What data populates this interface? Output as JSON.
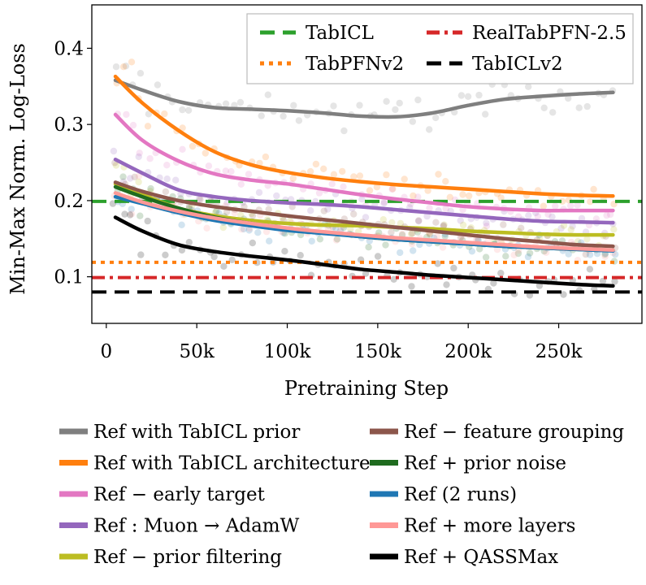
{
  "chart_data": {
    "type": "line",
    "title": "",
    "xlabel": "Pretraining Step",
    "ylabel": "Min-Max Norm. Log-Loss",
    "xlim": [
      -8000,
      296000
    ],
    "ylim": [
      0.0388,
      0.457
    ],
    "x_ticks": [
      0,
      50000,
      100000,
      150000,
      200000,
      250000
    ],
    "x_tick_labels": [
      "0",
      "50k",
      "100k",
      "150k",
      "200k",
      "250k"
    ],
    "y_ticks": [
      0.1,
      0.2,
      0.3,
      0.4
    ],
    "y_tick_labels": [
      "0.1",
      "0.2",
      "0.3",
      "0.4"
    ],
    "grid": false,
    "baselines": [
      {
        "name": "TabICL",
        "value": 0.199,
        "color": "#2ca02c",
        "style": "dashed"
      },
      {
        "name": "TabPFNv2",
        "value": 0.119,
        "color": "#ff7f0e",
        "style": "dotted"
      },
      {
        "name": "RealTabPFN-2.5",
        "value": 0.099,
        "color": "#d62728",
        "style": "dashdot"
      },
      {
        "name": "TabICLv2",
        "value": 0.08,
        "color": "#000000",
        "style": "dashed"
      }
    ],
    "x": [
      5000,
      20000,
      40000,
      60000,
      80000,
      100000,
      120000,
      140000,
      160000,
      180000,
      200000,
      220000,
      240000,
      260000,
      280000
    ],
    "series": [
      {
        "name": "Ref with TabICL prior",
        "color": "#7f7f7f",
        "values": [
          0.358,
          0.345,
          0.33,
          0.322,
          0.32,
          0.318,
          0.315,
          0.311,
          0.31,
          0.315,
          0.325,
          0.333,
          0.337,
          0.34,
          0.342
        ]
      },
      {
        "name": "Ref with TabICL architecture",
        "color": "#ff7f0e",
        "values": [
          0.363,
          0.328,
          0.292,
          0.264,
          0.247,
          0.237,
          0.23,
          0.225,
          0.221,
          0.218,
          0.215,
          0.212,
          0.209,
          0.207,
          0.206
        ]
      },
      {
        "name": "Ref − early target",
        "color": "#e377c2",
        "values": [
          0.313,
          0.279,
          0.252,
          0.235,
          0.227,
          0.222,
          0.215,
          0.208,
          0.202,
          0.197,
          0.192,
          0.189,
          0.187,
          0.187,
          0.187
        ]
      },
      {
        "name": "Ref : Muon → AdamW",
        "color": "#9467bd",
        "values": [
          0.254,
          0.236,
          0.214,
          0.205,
          0.2,
          0.197,
          0.195,
          0.192,
          0.188,
          0.184,
          0.18,
          0.176,
          0.173,
          0.172,
          0.171
        ]
      },
      {
        "name": "Ref − prior filtering",
        "color": "#bcbd22",
        "values": [
          0.222,
          0.208,
          0.19,
          0.18,
          0.174,
          0.17,
          0.168,
          0.167,
          0.165,
          0.163,
          0.16,
          0.158,
          0.156,
          0.155,
          0.155
        ]
      },
      {
        "name": "Ref − feature grouping",
        "color": "#8c564b",
        "values": [
          0.224,
          0.212,
          0.2,
          0.192,
          0.186,
          0.18,
          0.175,
          0.17,
          0.165,
          0.16,
          0.155,
          0.15,
          0.146,
          0.142,
          0.14
        ]
      },
      {
        "name": "Ref + prior noise",
        "color": "#1f6b1f",
        "values": [
          0.218,
          0.205,
          0.19,
          0.178,
          0.17,
          0.163,
          0.158,
          0.153,
          0.149,
          0.146,
          0.143,
          0.14,
          0.138,
          0.136,
          0.135
        ]
      },
      {
        "name": "Ref (2 runs)",
        "color": "#1f77b4",
        "values": [
          0.205,
          0.196,
          0.184,
          0.174,
          0.167,
          0.161,
          0.157,
          0.153,
          0.149,
          0.146,
          0.143,
          0.14,
          0.138,
          0.136,
          0.134
        ]
      },
      {
        "name": "Ref + more layers",
        "color": "#ff9896",
        "values": [
          0.21,
          0.198,
          0.186,
          0.177,
          0.17,
          0.164,
          0.159,
          0.155,
          0.151,
          0.148,
          0.145,
          0.142,
          0.139,
          0.137,
          0.135
        ]
      },
      {
        "name": "Ref + QASSMax",
        "color": "#000000",
        "values": [
          0.178,
          0.16,
          0.142,
          0.133,
          0.127,
          0.122,
          0.116,
          0.11,
          0.106,
          0.102,
          0.099,
          0.096,
          0.093,
          0.09,
          0.088
        ]
      }
    ],
    "legend_inner": [
      {
        "label": "TabICL",
        "color": "#2ca02c",
        "style": "dashed"
      },
      {
        "label": "RealTabPFN-2.5",
        "color": "#d62728",
        "style": "dashdot"
      },
      {
        "label": "TabPFNv2",
        "color": "#ff7f0e",
        "style": "dotted"
      },
      {
        "label": "TabICLv2",
        "color": "#000000",
        "style": "dashed"
      }
    ],
    "legend_outer": [
      {
        "label": "Ref with TabICL prior",
        "color": "#7f7f7f"
      },
      {
        "label": "Ref − feature grouping",
        "color": "#8c564b"
      },
      {
        "label": "Ref with TabICL architecture",
        "color": "#ff7f0e"
      },
      {
        "label": "Ref + prior noise",
        "color": "#1f6b1f"
      },
      {
        "label": "Ref − early target",
        "color": "#e377c2"
      },
      {
        "label": "Ref (2 runs)",
        "color": "#1f77b4"
      },
      {
        "label": "Ref : Muon → AdamW",
        "color": "#9467bd"
      },
      {
        "label": "Ref + more layers",
        "color": "#ff9896"
      },
      {
        "label": "Ref − prior filtering",
        "color": "#bcbd22"
      },
      {
        "label": "Ref + QASSMax",
        "color": "#000000"
      }
    ]
  }
}
